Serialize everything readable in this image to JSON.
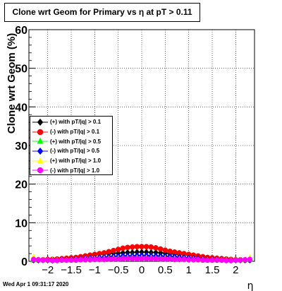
{
  "title": "Clone wrt Geom for Primary vs   η at pT > 0.11",
  "footer_text": "Wed Apr  1 09:31:17 2020",
  "chart_data": {
    "type": "scatter",
    "xlabel": "η",
    "ylabel": "Clone wrt Geom (%)",
    "xlim": [
      -2.4,
      2.4
    ],
    "ylim": [
      0,
      60
    ],
    "x_ticks": [
      -2,
      -1.5,
      -1,
      -0.5,
      0,
      0.5,
      1,
      1.5,
      2
    ],
    "x_tick_labels": [
      "−2",
      "−1.5",
      "−1",
      "−0.5",
      "0",
      "0.5",
      "1",
      "1.5",
      "2"
    ],
    "y_ticks": [
      0,
      10,
      20,
      30,
      40,
      50,
      60
    ],
    "y_tick_labels": [
      "0",
      "10",
      "20",
      "30",
      "40",
      "50",
      "60"
    ],
    "grid": true,
    "legend_position": "middle-left",
    "x": [
      -2.3,
      -2.2,
      -2.1,
      -2.0,
      -1.9,
      -1.8,
      -1.7,
      -1.6,
      -1.5,
      -1.4,
      -1.3,
      -1.2,
      -1.1,
      -1.0,
      -0.9,
      -0.8,
      -0.7,
      -0.6,
      -0.5,
      -0.4,
      -0.3,
      -0.2,
      -0.1,
      0.0,
      0.1,
      0.2,
      0.3,
      0.4,
      0.5,
      0.6,
      0.7,
      0.8,
      0.9,
      1.0,
      1.1,
      1.2,
      1.3,
      1.4,
      1.5,
      1.6,
      1.7,
      1.8,
      1.9,
      2.0,
      2.1,
      2.2,
      2.3
    ],
    "series": [
      {
        "name": "(+) with pT/|q| > 0.1",
        "color": "#000000",
        "marker": "diamond",
        "values": [
          0.6,
          0.5,
          0.4,
          0.3,
          0.3,
          0.4,
          0.5,
          0.6,
          0.7,
          0.8,
          1.0,
          1.2,
          1.5,
          1.7,
          1.8,
          1.9,
          2.0,
          2.1,
          2.1,
          2.2,
          2.3,
          2.3,
          2.4,
          2.4,
          2.4,
          2.3,
          2.3,
          2.2,
          2.1,
          2.0,
          1.9,
          1.8,
          1.7,
          1.6,
          1.4,
          1.2,
          1.0,
          0.9,
          0.8,
          0.7,
          0.6,
          0.5,
          0.4,
          0.3,
          0.3,
          0.4,
          0.5
        ]
      },
      {
        "name": "(-) with pT/|q| > 0.1",
        "color": "#ff0000",
        "marker": "circle",
        "values": [
          0.3,
          0.3,
          0.4,
          0.5,
          0.5,
          0.6,
          0.7,
          0.8,
          0.9,
          1.0,
          1.2,
          1.4,
          1.6,
          1.8,
          2.0,
          2.2,
          2.5,
          2.8,
          3.1,
          3.4,
          3.6,
          3.7,
          3.8,
          3.8,
          3.8,
          3.7,
          3.5,
          3.2,
          2.9,
          2.6,
          2.4,
          2.2,
          2.0,
          1.8,
          1.6,
          1.4,
          1.2,
          1.0,
          0.9,
          0.8,
          0.7,
          0.6,
          0.5,
          0.4,
          0.4,
          0.3,
          0.3
        ]
      },
      {
        "name": "(+) with pT/|q| > 0.5",
        "color": "#00ff00",
        "marker": "triangle",
        "values": [
          0.4,
          0.4,
          0.3,
          0.3,
          0.3,
          0.3,
          0.3,
          0.4,
          0.4,
          0.5,
          0.6,
          0.7,
          0.8,
          0.9,
          1.0,
          1.1,
          1.2,
          1.3,
          1.3,
          1.4,
          1.4,
          1.5,
          1.5,
          1.5,
          1.5,
          1.5,
          1.4,
          1.4,
          1.3,
          1.3,
          1.2,
          1.1,
          1.0,
          0.9,
          0.8,
          0.7,
          0.6,
          0.5,
          0.4,
          0.4,
          0.3,
          0.3,
          0.3,
          0.3,
          0.3,
          0.4,
          0.4
        ]
      },
      {
        "name": "(-) with pT/|q| > 0.5",
        "color": "#0000ff",
        "marker": "diamond",
        "values": [
          0.3,
          0.3,
          0.3,
          0.3,
          0.3,
          0.3,
          0.4,
          0.4,
          0.5,
          0.5,
          0.6,
          0.7,
          0.8,
          0.9,
          1.0,
          1.1,
          1.2,
          1.3,
          1.3,
          1.4,
          1.4,
          1.4,
          1.5,
          1.5,
          1.5,
          1.4,
          1.4,
          1.4,
          1.3,
          1.3,
          1.2,
          1.1,
          1.0,
          0.9,
          0.8,
          0.7,
          0.6,
          0.5,
          0.5,
          0.4,
          0.4,
          0.3,
          0.3,
          0.3,
          0.3,
          0.3,
          0.3
        ]
      },
      {
        "name": "(+) with pT/|q| > 1.0",
        "color": "#ffff00",
        "marker": "triangle",
        "values": [
          1.2,
          0.6,
          0.4,
          0.3,
          0.3,
          0.3,
          0.3,
          0.3,
          0.3,
          0.4,
          0.4,
          0.5,
          0.5,
          0.6,
          0.6,
          0.7,
          0.7,
          0.8,
          0.8,
          0.8,
          0.9,
          0.9,
          0.9,
          0.9,
          0.9,
          0.9,
          0.8,
          0.8,
          0.8,
          0.7,
          0.7,
          0.6,
          0.6,
          0.5,
          0.5,
          0.4,
          0.4,
          0.3,
          0.3,
          0.3,
          0.3,
          0.3,
          0.3,
          0.3,
          0.4,
          0.6,
          1.0
        ]
      },
      {
        "name": "(-) with pT/|q| > 1.0",
        "color": "#ff00ff",
        "marker": "circle",
        "values": [
          0.5,
          0.4,
          0.3,
          0.3,
          0.2,
          0.2,
          0.3,
          0.3,
          0.3,
          0.3,
          0.4,
          0.4,
          0.4,
          0.5,
          0.5,
          0.5,
          0.6,
          0.6,
          0.6,
          0.7,
          0.7,
          0.7,
          0.7,
          0.7,
          0.7,
          0.7,
          0.7,
          0.6,
          0.6,
          0.6,
          0.5,
          0.5,
          0.5,
          0.4,
          0.4,
          0.4,
          0.3,
          0.3,
          0.3,
          0.3,
          0.3,
          0.2,
          0.2,
          0.3,
          0.3,
          0.4,
          0.5
        ]
      }
    ]
  }
}
